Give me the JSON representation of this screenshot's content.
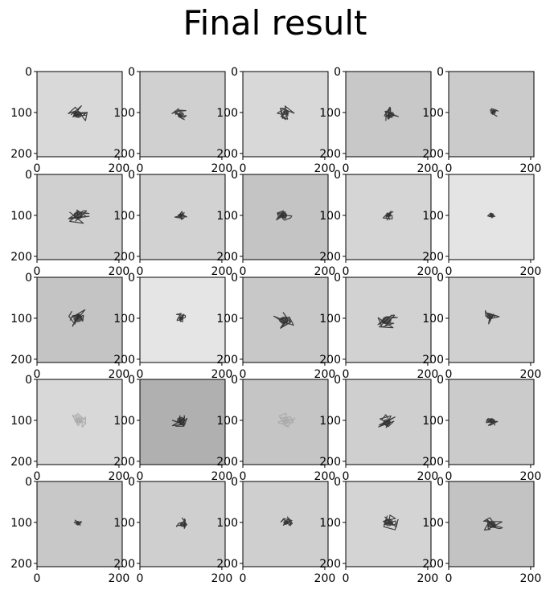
{
  "figure": {
    "title": "Final result"
  },
  "chart_data": {
    "type": "image-grid",
    "title": "Final result",
    "rows": 5,
    "cols": 5,
    "xlim": [
      0,
      208
    ],
    "ylim": [
      208,
      0
    ],
    "xticks": [
      0,
      200
    ],
    "yticks": [
      0,
      100,
      200
    ],
    "panels": [
      {
        "bg": "#d9d9d9",
        "ink": "#2e2e2e",
        "cx": 100,
        "cy": 105,
        "r": 28,
        "seed": 1
      },
      {
        "bg": "#d0d0d0",
        "ink": "#2e2e2e",
        "cx": 100,
        "cy": 105,
        "r": 22,
        "seed": 2
      },
      {
        "bg": "#d8d8d8",
        "ink": "#2e2e2e",
        "cx": 105,
        "cy": 100,
        "r": 22,
        "seed": 3
      },
      {
        "bg": "#c8c8c8",
        "ink": "#2e2e2e",
        "cx": 110,
        "cy": 105,
        "r": 24,
        "seed": 4
      },
      {
        "bg": "#cbcbcb",
        "ink": "#2e2e2e",
        "cx": 110,
        "cy": 100,
        "r": 14,
        "seed": 5
      },
      {
        "bg": "#d0d0d0",
        "ink": "#2e2e2e",
        "cx": 100,
        "cy": 100,
        "r": 32,
        "seed": 6
      },
      {
        "bg": "#d2d2d2",
        "ink": "#2e2e2e",
        "cx": 100,
        "cy": 100,
        "r": 16,
        "seed": 7
      },
      {
        "bg": "#c4c4c4",
        "ink": "#2e2e2e",
        "cx": 100,
        "cy": 100,
        "r": 24,
        "seed": 8
      },
      {
        "bg": "#d5d5d5",
        "ink": "#2e2e2e",
        "cx": 105,
        "cy": 100,
        "r": 16,
        "seed": 9
      },
      {
        "bg": "#e4e4e4",
        "ink": "#2e2e2e",
        "cx": 105,
        "cy": 100,
        "r": 10,
        "seed": 10
      },
      {
        "bg": "#c4c4c4",
        "ink": "#2e2e2e",
        "cx": 100,
        "cy": 100,
        "r": 32,
        "seed": 11
      },
      {
        "bg": "#e5e5e5",
        "ink": "#2e2e2e",
        "cx": 100,
        "cy": 100,
        "r": 16,
        "seed": 12
      },
      {
        "bg": "#c8c8c8",
        "ink": "#2e2e2e",
        "cx": 100,
        "cy": 105,
        "r": 30,
        "seed": 13
      },
      {
        "bg": "#d2d2d2",
        "ink": "#2e2e2e",
        "cx": 100,
        "cy": 105,
        "r": 32,
        "seed": 14
      },
      {
        "bg": "#d0d0d0",
        "ink": "#2e2e2e",
        "cx": 100,
        "cy": 95,
        "r": 24,
        "seed": 15
      },
      {
        "bg": "#d8d8d8",
        "ink": "#a8a8a8",
        "cx": 100,
        "cy": 100,
        "r": 24,
        "seed": 16
      },
      {
        "bg": "#b0b0b0",
        "ink": "#2a2a2a",
        "cx": 100,
        "cy": 100,
        "r": 28,
        "seed": 17
      },
      {
        "bg": "#c5c5c5",
        "ink": "#a8a8a8",
        "cx": 105,
        "cy": 100,
        "r": 24,
        "seed": 18
      },
      {
        "bg": "#cfcfcf",
        "ink": "#2e2e2e",
        "cx": 100,
        "cy": 105,
        "r": 26,
        "seed": 19
      },
      {
        "bg": "#cbcbcb",
        "ink": "#2e2e2e",
        "cx": 105,
        "cy": 100,
        "r": 18,
        "seed": 20
      },
      {
        "bg": "#c8c8c8",
        "ink": "#2e2e2e",
        "cx": 100,
        "cy": 100,
        "r": 10,
        "seed": 21
      },
      {
        "bg": "#cfcfcf",
        "ink": "#2e2e2e",
        "cx": 105,
        "cy": 105,
        "r": 20,
        "seed": 22
      },
      {
        "bg": "#cfcfcf",
        "ink": "#2e2e2e",
        "cx": 105,
        "cy": 100,
        "r": 18,
        "seed": 23
      },
      {
        "bg": "#d4d4d4",
        "ink": "#2e2e2e",
        "cx": 105,
        "cy": 100,
        "r": 30,
        "seed": 24
      },
      {
        "bg": "#c3c3c3",
        "ink": "#2e2e2e",
        "cx": 105,
        "cy": 105,
        "r": 28,
        "seed": 25
      }
    ]
  }
}
